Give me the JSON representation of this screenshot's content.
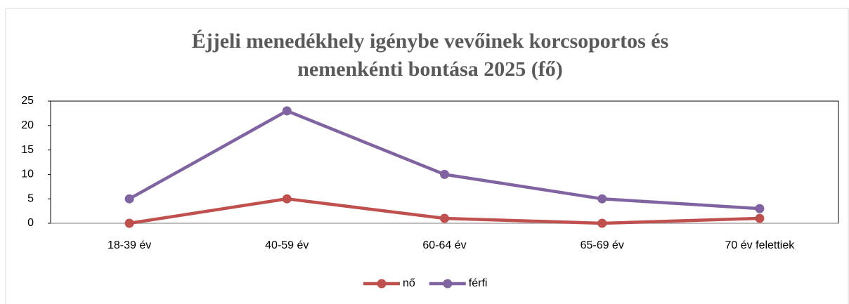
{
  "chart_data": {
    "type": "line",
    "title": [
      "Éjjeli menedékhely igénybe vevőinek korcsoportos és",
      "nemenkénti bontása 2025 (fő)"
    ],
    "categories": [
      "18-39 év",
      "40-59 év",
      "60-64 év",
      "65-69 év",
      "70 év felettiek"
    ],
    "series": [
      {
        "name": "nő",
        "color": "#c0504d",
        "values": [
          0,
          5,
          1,
          0,
          1
        ]
      },
      {
        "name": "férfi",
        "color": "#8064a2",
        "values": [
          5,
          23,
          10,
          5,
          3
        ]
      }
    ],
    "ylim": [
      0,
      25
    ],
    "yticks": [
      0,
      5,
      10,
      15,
      20,
      25
    ],
    "legend": "bottom"
  }
}
